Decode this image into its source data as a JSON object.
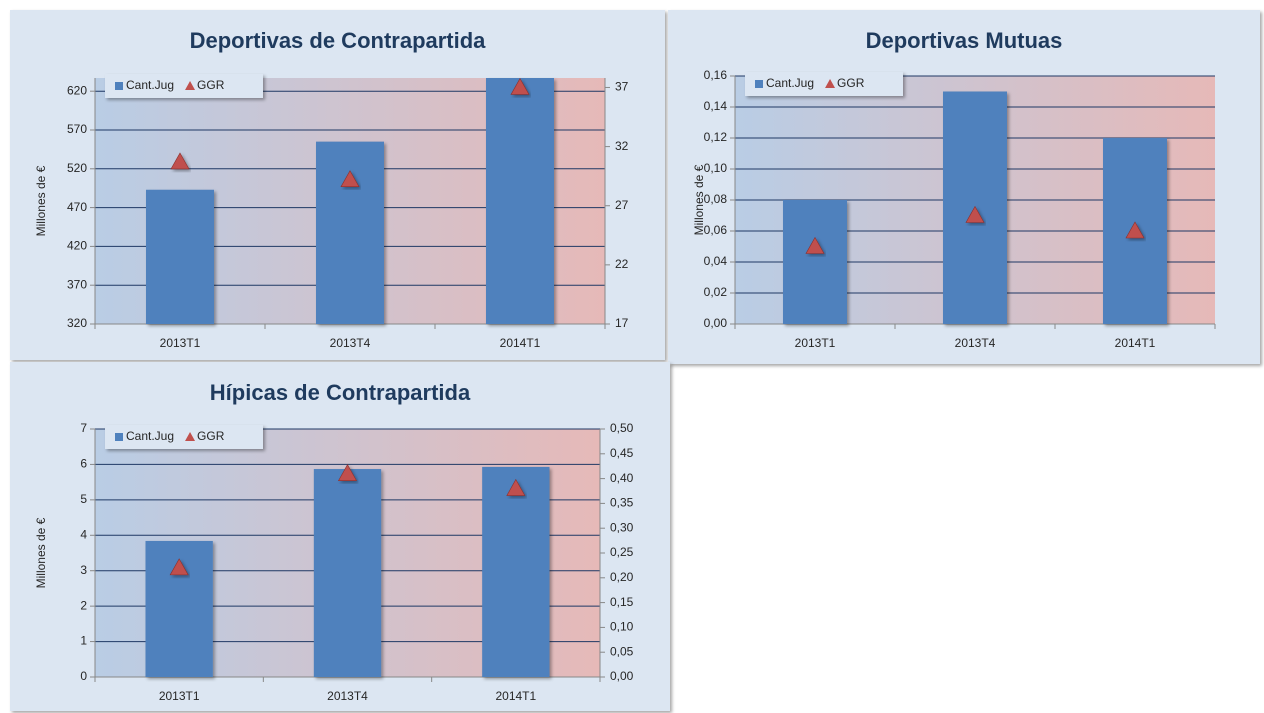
{
  "chart_data": [
    {
      "type": "bar",
      "title": "Deportivas de Contrapartida",
      "y_label": "Millones de €",
      "categories": [
        "2013T1",
        "2013T4",
        "2014T1"
      ],
      "series": [
        {
          "name": "Cant.Jug",
          "color": "#4f81bd",
          "values": [
            493,
            555,
            637
          ]
        },
        {
          "name": "GGR",
          "color": "#c0504d",
          "marker": "triangle",
          "axis": "y2",
          "values": [
            30.7,
            29.2,
            37
          ]
        }
      ],
      "ylim": [
        320,
        637
      ],
      "yticks": [
        320,
        370,
        420,
        470,
        520,
        570,
        620
      ],
      "y2lim": [
        17,
        37.8
      ],
      "y2ticks": [
        17,
        22,
        27,
        32,
        37
      ],
      "grid": true,
      "legend": "top-left"
    },
    {
      "type": "bar",
      "title": "Deportivas Mutuas",
      "y_label": "Millones de €",
      "categories": [
        "2013T1",
        "2013T4",
        "2014T1"
      ],
      "series": [
        {
          "name": "Cant.Jug",
          "color": "#4f81bd",
          "values": [
            0.08,
            0.15,
            0.12
          ]
        },
        {
          "name": "GGR",
          "color": "#c0504d",
          "marker": "triangle",
          "values": [
            0.05,
            0.07,
            0.06
          ]
        }
      ],
      "ylim": [
        0,
        0.16
      ],
      "yticks": [
        {
          "value": 0,
          "label": "0,00"
        },
        {
          "value": 0.02,
          "label": "0,02"
        },
        {
          "value": 0.04,
          "label": "0,04"
        },
        {
          "value": 0.06,
          "label": "0,06"
        },
        {
          "value": 0.08,
          "label": "0,08"
        },
        {
          "value": 0.1,
          "label": "0,10"
        },
        {
          "value": 0.12,
          "label": "0,12"
        },
        {
          "value": 0.14,
          "label": "0,14"
        },
        {
          "value": 0.16,
          "label": "0,16"
        }
      ],
      "grid": true,
      "legend": "top-left"
    },
    {
      "type": "bar",
      "title": "Hípicas de Contrapartida",
      "y_label": "Millones de €",
      "categories": [
        "2013T1",
        "2013T4",
        "2014T1"
      ],
      "series": [
        {
          "name": "Cant.Jug",
          "color": "#4f81bd",
          "values": [
            3.84,
            5.87,
            5.93
          ]
        },
        {
          "name": "GGR",
          "color": "#c0504d",
          "marker": "triangle",
          "axis": "y2",
          "values": [
            0.22,
            0.41,
            0.38
          ]
        }
      ],
      "ylim": [
        0,
        7
      ],
      "yticks": [
        0,
        1,
        2,
        3,
        4,
        5,
        6,
        7
      ],
      "y2lim": [
        0,
        0.5
      ],
      "y2ticks": [
        {
          "value": 0,
          "label": "0,00"
        },
        {
          "value": 0.05,
          "label": "0,05"
        },
        {
          "value": 0.1,
          "label": "0,10"
        },
        {
          "value": 0.15,
          "label": "0,15"
        },
        {
          "value": 0.2,
          "label": "0,20"
        },
        {
          "value": 0.25,
          "label": "0,25"
        },
        {
          "value": 0.3,
          "label": "0,30"
        },
        {
          "value": 0.35,
          "label": "0,35"
        },
        {
          "value": 0.4,
          "label": "0,40"
        },
        {
          "value": 0.45,
          "label": "0,45"
        },
        {
          "value": 0.5,
          "label": "0,50"
        }
      ],
      "grid": true,
      "legend": "top-left"
    }
  ]
}
